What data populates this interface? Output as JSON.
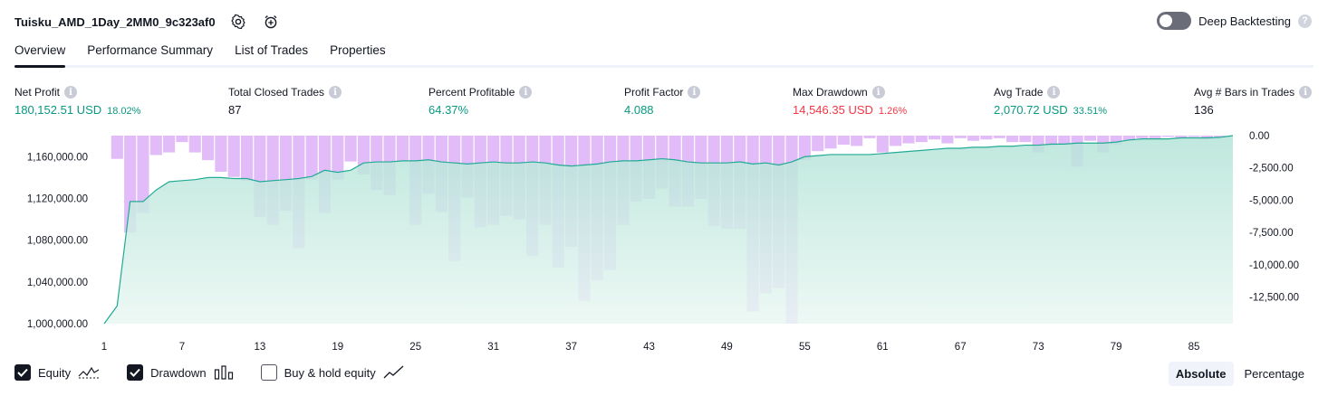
{
  "header": {
    "strategy_name": "Tuisku_AMD_1Day_2MM0_9c323af0",
    "settings_icon": "gear-icon",
    "alert_icon": "add-alarm-icon"
  },
  "deep_backtesting": {
    "label": "Deep Backtesting",
    "enabled": false,
    "help_icon": "question-icon"
  },
  "tabs": [
    {
      "label": "Overview",
      "active": true
    },
    {
      "label": "Performance Summary",
      "active": false
    },
    {
      "label": "List of Trades",
      "active": false
    },
    {
      "label": "Properties",
      "active": false
    }
  ],
  "metrics": {
    "net_profit": {
      "label": "Net Profit",
      "value": "180,152.51 USD",
      "pct": "18.02%"
    },
    "total_closed_trades": {
      "label": "Total Closed Trades",
      "value": "87"
    },
    "percent_profitable": {
      "label": "Percent Profitable",
      "value": "64.37%"
    },
    "profit_factor": {
      "label": "Profit Factor",
      "value": "4.088"
    },
    "max_drawdown": {
      "label": "Max Drawdown",
      "value": "14,546.35 USD",
      "pct": "1.26%"
    },
    "avg_trade": {
      "label": "Avg Trade",
      "value": "2,070.72 USD",
      "pct": "33.51%"
    },
    "avg_bars": {
      "label": "Avg # Bars in Trades",
      "value": "136"
    }
  },
  "colors": {
    "positive": "#089981",
    "negative": "#f23645",
    "equity_line": "#22ab94",
    "equity_fill": "#c7ebe3",
    "drawdown_bar": "#ce93f5"
  },
  "chart_data": {
    "type": "area",
    "x": [
      1,
      2,
      3,
      4,
      5,
      6,
      7,
      8,
      9,
      10,
      11,
      12,
      13,
      14,
      15,
      16,
      17,
      18,
      19,
      20,
      21,
      22,
      23,
      24,
      25,
      26,
      27,
      28,
      29,
      30,
      31,
      32,
      33,
      34,
      35,
      36,
      37,
      38,
      39,
      40,
      41,
      42,
      43,
      44,
      45,
      46,
      47,
      48,
      49,
      50,
      51,
      52,
      53,
      54,
      55,
      56,
      57,
      58,
      59,
      60,
      61,
      62,
      63,
      64,
      65,
      66,
      67,
      68,
      69,
      70,
      71,
      72,
      73,
      74,
      75,
      76,
      77,
      78,
      79,
      80,
      81,
      82,
      83,
      84,
      85,
      86,
      87,
      88
    ],
    "x_ticks": [
      "1",
      "7",
      "13",
      "19",
      "25",
      "31",
      "37",
      "43",
      "49",
      "55",
      "61",
      "67",
      "73",
      "79",
      "85"
    ],
    "y_left_ticks": [
      "1,160,000.00",
      "1,120,000.00",
      "1,080,000.00",
      "1,040,000.00",
      "1,000,000.00"
    ],
    "y_right_ticks": [
      "0.00",
      "-2,500.00",
      "-5,000.00",
      "-7,500.00",
      "-10,000.00",
      "-12,500.00"
    ],
    "y_left_range": [
      1000000,
      1180152.51
    ],
    "y_right_range": [
      -14546.35,
      0
    ],
    "series": [
      {
        "name": "Equity",
        "values": [
          1000000,
          1017000,
          1117000,
          1117000,
          1128000,
          1136000,
          1137000,
          1138000,
          1140000,
          1140000,
          1139000,
          1139000,
          1136000,
          1137000,
          1138000,
          1139000,
          1141000,
          1147000,
          1145000,
          1147000,
          1154000,
          1155000,
          1155000,
          1156000,
          1156000,
          1157000,
          1155000,
          1154000,
          1153000,
          1154000,
          1155000,
          1154000,
          1154000,
          1155000,
          1154000,
          1152000,
          1151000,
          1152000,
          1153000,
          1155000,
          1156000,
          1156000,
          1157000,
          1158000,
          1157000,
          1155000,
          1154000,
          1154000,
          1154000,
          1155000,
          1153000,
          1154000,
          1152000,
          1155000,
          1160000,
          1161000,
          1162000,
          1162000,
          1162000,
          1162000,
          1163000,
          1164000,
          1165000,
          1166000,
          1167000,
          1168000,
          1168000,
          1169000,
          1169000,
          1170000,
          1170000,
          1171000,
          1171000,
          1172000,
          1172000,
          1173000,
          1173000,
          1173000,
          1174000,
          1176000,
          1177000,
          1177000,
          1177000,
          1178000,
          1178000,
          1178000,
          1178500,
          1180152.51
        ]
      },
      {
        "name": "Drawdown",
        "values": [
          0,
          -1800,
          -7500,
          -6000,
          -1500,
          -1300,
          -500,
          -1300,
          -1900,
          -2800,
          -3200,
          -3500,
          -6300,
          -6900,
          -5800,
          -8700,
          -3400,
          -6000,
          -3400,
          -2000,
          -3000,
          -4200,
          -4600,
          -2000,
          -6900,
          -4500,
          -5900,
          -9700,
          -4800,
          -7100,
          -6900,
          -6200,
          -6500,
          -9300,
          -6900,
          -10200,
          -8600,
          -12800,
          -11200,
          -10400,
          -6900,
          -5100,
          -4900,
          -4100,
          -5500,
          -5500,
          -4900,
          -7000,
          -7200,
          -7200,
          -13600,
          -12200,
          -11800,
          -14546.35,
          -1900,
          -1200,
          -1000,
          -700,
          -800,
          -200,
          -1300,
          -800,
          -600,
          -500,
          -300,
          -600,
          -200,
          -400,
          -300,
          -200,
          -500,
          -500,
          -1300,
          -800,
          -700,
          -2400,
          -400,
          -1300,
          -700,
          -400,
          -200,
          -200,
          -100,
          -200,
          -100,
          -300,
          -100,
          0
        ]
      }
    ],
    "grid": false
  },
  "legend": {
    "equity": {
      "label": "Equity",
      "checked": true
    },
    "drawdown": {
      "label": "Drawdown",
      "checked": true
    },
    "buy_hold": {
      "label": "Buy & hold equity",
      "checked": false
    }
  },
  "modes": {
    "absolute": "Absolute",
    "percentage": "Percentage",
    "selected": "absolute"
  }
}
